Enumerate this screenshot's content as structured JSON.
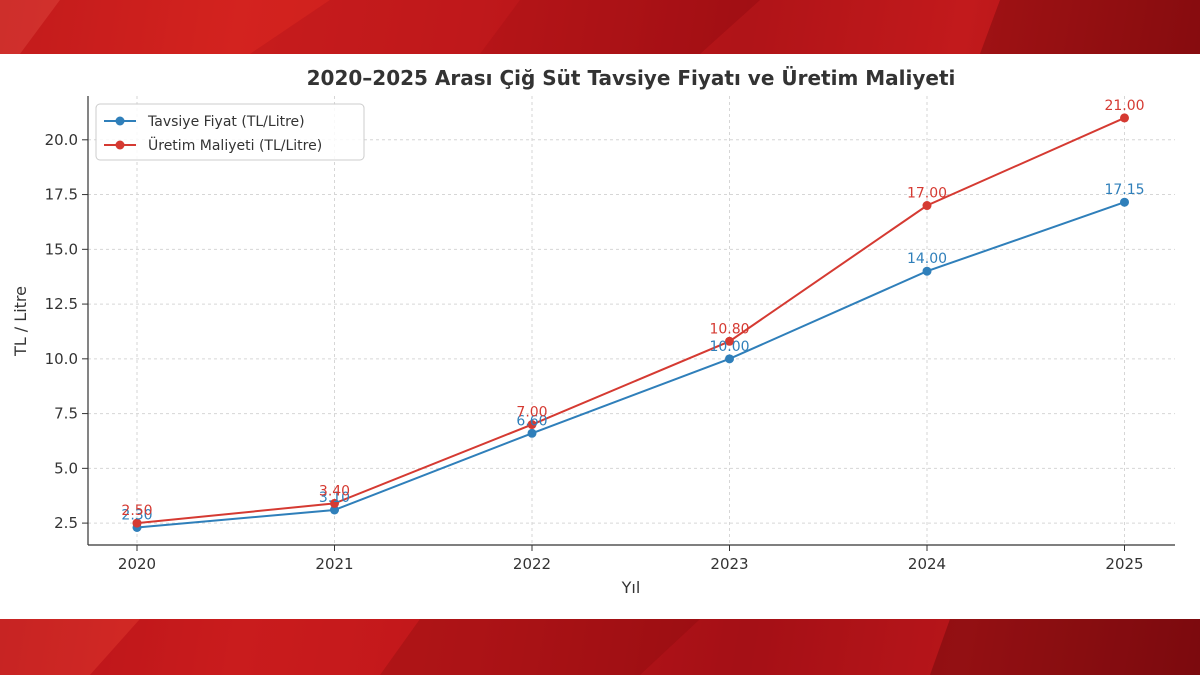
{
  "colors": {
    "band_primary": "#c81a1c",
    "tavsiye": "#2f7fba",
    "maliyet": "#d53a32"
  },
  "chart_data": {
    "type": "line",
    "title": "2020–2025 Arası Çiğ Süt Tavsiye Fiyatı ve Üretim Maliyeti",
    "xlabel": "Yıl",
    "ylabel": "TL / Litre",
    "categories": [
      "2020",
      "2021",
      "2022",
      "2023",
      "2024",
      "2025"
    ],
    "ylim": [
      1.5,
      22.0
    ],
    "yticks": [
      "2.5",
      "5.0",
      "7.5",
      "10.0",
      "12.5",
      "15.0",
      "17.5",
      "20.0"
    ],
    "grid": true,
    "legend_position": "top-left",
    "series": [
      {
        "name": "Tavsiye Fiyat (TL/Litre)",
        "color": "#2f7fba",
        "values": [
          2.3,
          3.1,
          6.6,
          10.0,
          14.0,
          17.15
        ],
        "labels": [
          "2.30",
          "3.10",
          "6.60",
          "10.00",
          "14.00",
          "17.15"
        ]
      },
      {
        "name": "Üretim Maliyeti (TL/Litre)",
        "color": "#d53a32",
        "values": [
          2.5,
          3.4,
          7.0,
          10.8,
          17.0,
          21.0
        ],
        "labels": [
          "2.50",
          "3.40",
          "7.00",
          "10.80",
          "17.00",
          "21.00"
        ]
      }
    ]
  }
}
